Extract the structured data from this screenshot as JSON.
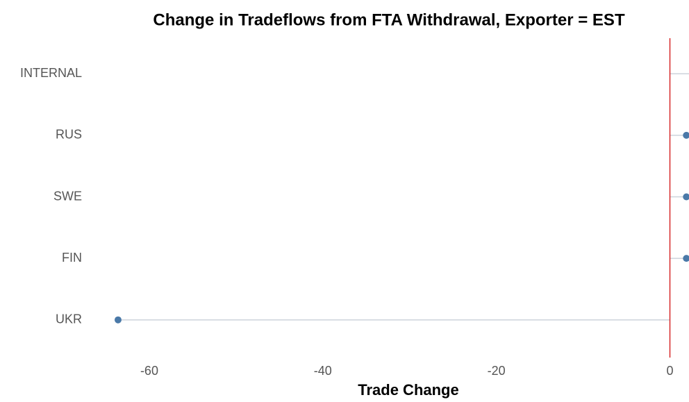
{
  "chart_data": {
    "type": "lollipop",
    "title": "Change in Tradeflows from FTA Withdrawal, Exporter = EST",
    "x_label": "Trade Change",
    "categories": [
      "INTERNAL",
      "RUS",
      "SWE",
      "FIN",
      "UKR"
    ],
    "values": [
      4,
      1.9,
      1.9,
      1.9,
      -63.6
    ],
    "color": "#4a79a8",
    "xlim": [
      -67.2,
      2.2
    ],
    "xticks": [
      -60,
      -40,
      -20,
      0
    ],
    "reference_line": 0,
    "reference_color": "#d62728"
  }
}
